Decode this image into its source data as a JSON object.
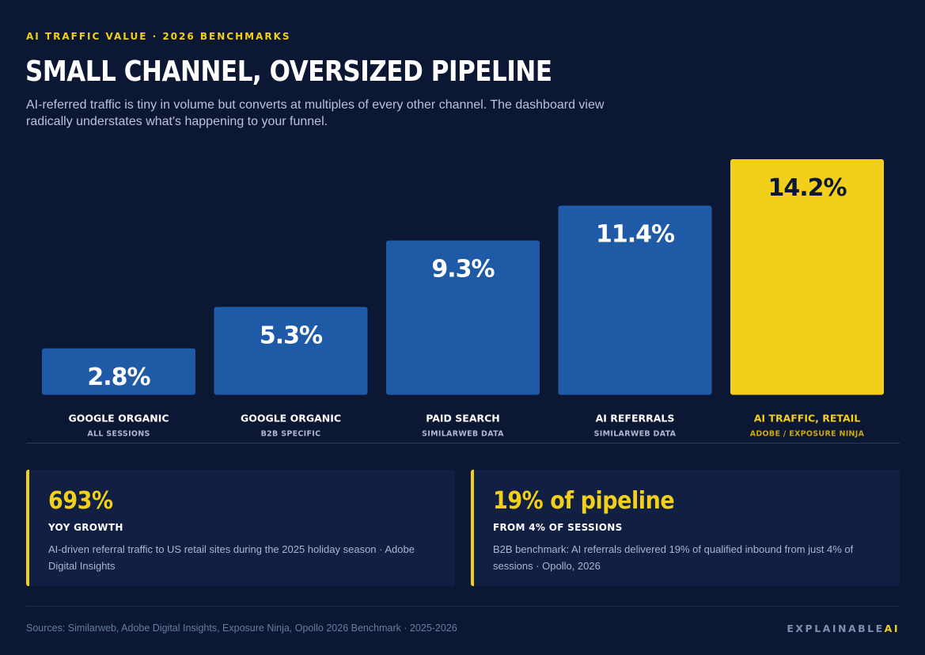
{
  "header": {
    "eyebrow": "AI TRAFFIC VALUE · 2026 BENCHMARKS",
    "title": "SMALL CHANNEL, OVERSIZED PIPELINE",
    "subtitle": "AI-referred traffic is tiny in volume but converts at multiples of every other channel. The dashboard view radically understates what's happening to your funnel."
  },
  "chart_data": {
    "type": "bar",
    "categories": [
      "GOOGLE ORGANIC",
      "GOOGLE ORGANIC",
      "PAID SEARCH",
      "AI REFERRALS",
      "AI TRAFFIC, RETAIL"
    ],
    "sublabels": [
      "ALL SESSIONS",
      "B2B SPECIFIC",
      "SIMILARWEB DATA",
      "SIMILARWEB DATA",
      "ADOBE / EXPOSURE NINJA"
    ],
    "values": [
      2.8,
      5.3,
      9.3,
      11.4,
      14.2
    ],
    "value_labels": [
      "2.8%",
      "5.3%",
      "9.3%",
      "11.4%",
      "14.2%"
    ],
    "highlight_index": 4,
    "title": "",
    "xlabel": "",
    "ylabel": "",
    "ylim": [
      0,
      14.2
    ],
    "grid": false,
    "legend": "none",
    "colors": {
      "bar": "#1f5aa6",
      "highlight": "#f2cf1a",
      "highlight_text": "#0c1733",
      "sublabel": "#aeb8cf",
      "highlight_sublabel": "#c9a816"
    }
  },
  "cards": [
    {
      "big": "693%",
      "label": "YOY GROWTH",
      "desc": "AI-driven referral traffic to US retail sites during the 2025 holiday season · Adobe Digital Insights"
    },
    {
      "big": "19% of pipeline",
      "label": "FROM 4% OF SESSIONS",
      "desc": "B2B benchmark: AI referrals delivered 19% of qualified inbound from just 4% of sessions · Opollo, 2026"
    }
  ],
  "footer": {
    "sources": "Sources: Similarweb, Adobe Digital Insights, Exposure Ninja, Opollo 2026 Benchmark · 2025-2026",
    "brand_main": "EXPLAINABLE",
    "brand_accent": "AI"
  },
  "theme": {
    "background": "#0c1733",
    "accent": "#f2cf1a",
    "card_background": "#111f42"
  }
}
